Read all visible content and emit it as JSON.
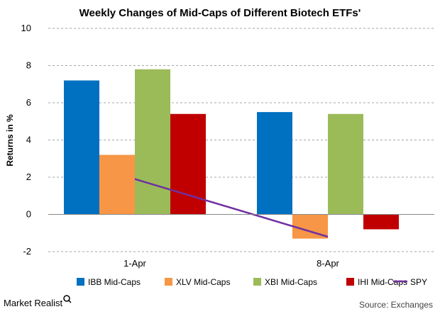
{
  "chart_data": {
    "type": "bar",
    "title": "Weekly Changes of Mid-Caps of Different Biotech ETFs'",
    "xlabel": "",
    "ylabel": "Returns in %",
    "ylim": [
      -2,
      10
    ],
    "yticks": [
      -2,
      0,
      2,
      4,
      6,
      8,
      10
    ],
    "grid": true,
    "legend_position": "bottom",
    "categories": [
      "1-Apr",
      "8-Apr"
    ],
    "series": [
      {
        "name": "IBB Mid-Caps",
        "type": "bar",
        "color": "#0070c0",
        "values": [
          7.2,
          5.5
        ]
      },
      {
        "name": "XLV Mid-Caps",
        "type": "bar",
        "color": "#f79646",
        "values": [
          3.2,
          -1.3
        ]
      },
      {
        "name": "XBI Mid-Caps",
        "type": "bar",
        "color": "#9bbb59",
        "values": [
          7.8,
          5.4
        ]
      },
      {
        "name": "IHI Mid-Caps",
        "type": "bar",
        "color": "#c00000",
        "values": [
          5.4,
          -0.8
        ]
      },
      {
        "name": "SPY",
        "type": "line",
        "color": "#7030a0",
        "values": [
          1.9,
          -1.2
        ]
      }
    ]
  },
  "footer": {
    "brand": "Market Realist",
    "source": "Source: Exchanges"
  }
}
